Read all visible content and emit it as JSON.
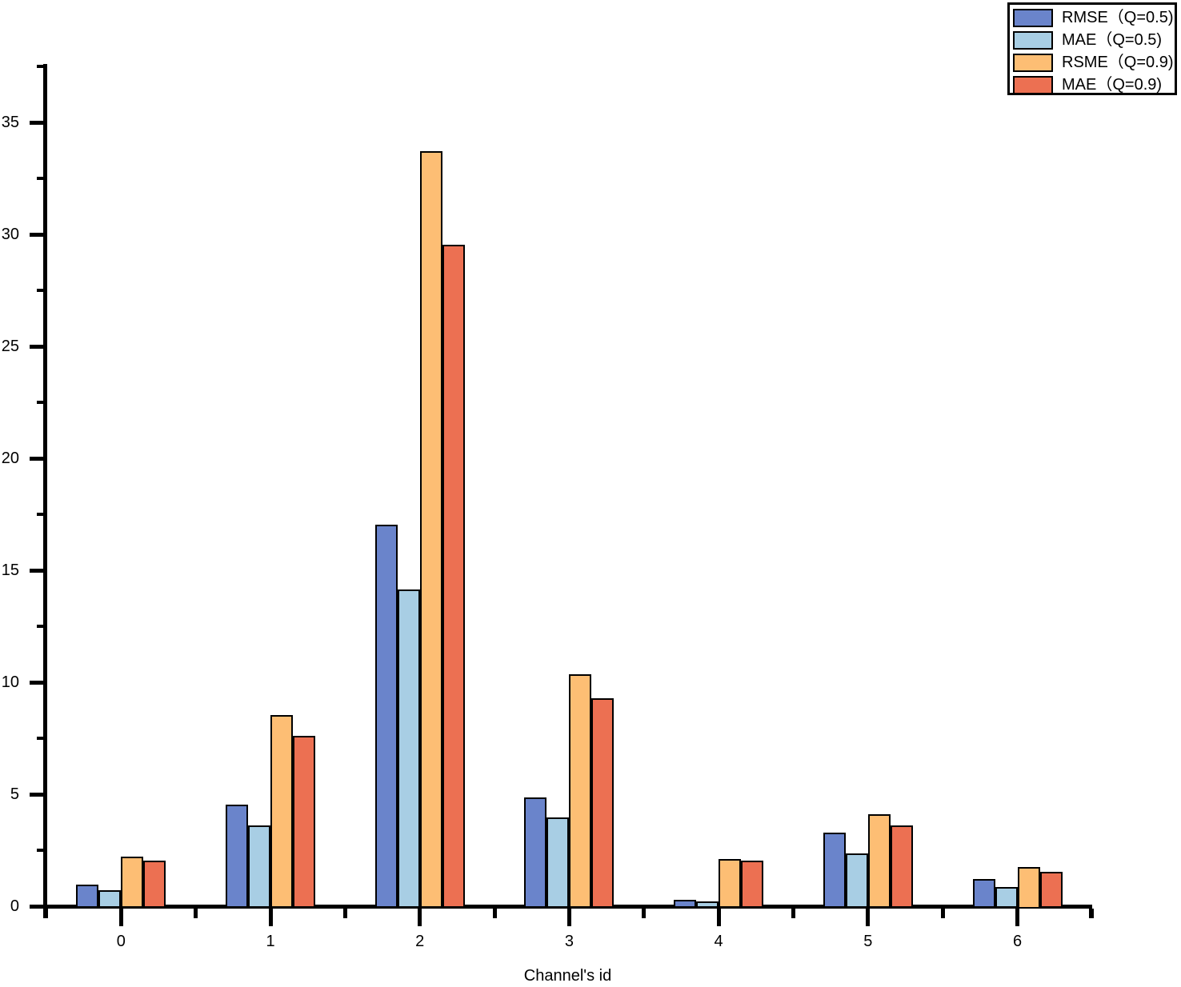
{
  "chart_data": {
    "type": "bar",
    "title": "",
    "xlabel": "Channel's id",
    "ylabel": "",
    "categories": [
      "0",
      "1",
      "2",
      "3",
      "4",
      "5",
      "6"
    ],
    "series": [
      {
        "name": "RMSE（Q=0.5)",
        "color": "#6A84CB",
        "values": [
          0.95,
          4.55,
          17.05,
          4.85,
          0.3,
          3.3,
          1.2
        ]
      },
      {
        "name": "MAE（Q=0.5)",
        "color": "#A8CEE4",
        "values": [
          0.73,
          3.6,
          14.15,
          3.95,
          0.22,
          2.35,
          0.85
        ]
      },
      {
        "name": "RSME（Q=0.9)",
        "color": "#FDBE74",
        "values": [
          2.23,
          8.55,
          33.7,
          10.35,
          2.1,
          4.1,
          1.75
        ]
      },
      {
        "name": "MAE（Q=0.9)",
        "color": "#EC7052",
        "values": [
          2.05,
          7.6,
          29.55,
          9.3,
          2.05,
          3.6,
          1.55
        ]
      }
    ],
    "ylim": [
      0,
      37.6
    ],
    "yticks": [
      0,
      5,
      10,
      15,
      20,
      25,
      30,
      35
    ],
    "ytick_minor_step": 2.5,
    "xtick_minor": "category-midpoints",
    "grid": false,
    "legend_position": "top-right",
    "bar_edge_color": "#000000",
    "background_color": "#ffffff"
  }
}
